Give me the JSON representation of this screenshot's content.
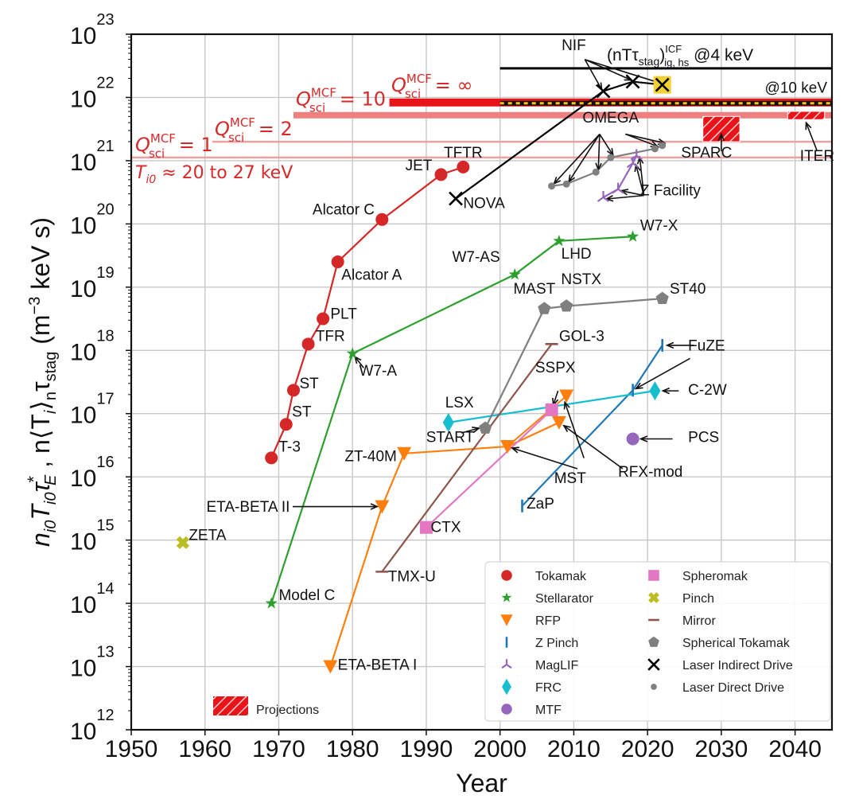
{
  "chart_data": {
    "type": "scatter",
    "title": "",
    "xlabel": "Year",
    "ylabel": "n_i0 T_i0 τ_E* , n⟨T_i⟩_n τ_stag (m⁻³ keV s)",
    "ylabel_parts": {
      "main": "n",
      "s1": "i0",
      "t": "T",
      "s2": "i0",
      "tau": "τ",
      "sE": "E",
      "star": "*",
      "comma": " ,  n⟨T",
      "si": "i",
      "close": "⟩",
      "sn": "n",
      "tau2": "τ",
      "stag": "stag",
      "units": " (m",
      "exp": "−3",
      "units2": " keV s)"
    },
    "xlim": [
      1950,
      2045
    ],
    "ylim_log10": [
      12,
      23
    ],
    "y_scale": "log",
    "grid": true,
    "x_ticks": [
      "1950",
      "1960",
      "1970",
      "1980",
      "1990",
      "2000",
      "2010",
      "2020",
      "2030",
      "2040"
    ],
    "x_tick_values": [
      1950,
      1960,
      1970,
      1980,
      1990,
      2000,
      2010,
      2020,
      2030,
      2040
    ],
    "y_ticks": [
      {
        "base": "10",
        "exp": "12",
        "value": 12
      },
      {
        "base": "10",
        "exp": "13",
        "value": 13
      },
      {
        "base": "10",
        "exp": "14",
        "value": 14
      },
      {
        "base": "10",
        "exp": "15",
        "value": 15
      },
      {
        "base": "10",
        "exp": "16",
        "value": 16
      },
      {
        "base": "10",
        "exp": "17",
        "value": 17
      },
      {
        "base": "10",
        "exp": "18",
        "value": 18
      },
      {
        "base": "10",
        "exp": "19",
        "value": 19
      },
      {
        "base": "10",
        "exp": "20",
        "value": 20
      },
      {
        "base": "10",
        "exp": "21",
        "value": 21
      },
      {
        "base": "10",
        "exp": "22",
        "value": 22
      },
      {
        "base": "10",
        "exp": "23",
        "value": 23
      }
    ],
    "thresholds": [
      {
        "name": "Q_sci^MCF = 1",
        "label_main": "Q",
        "label_sup": "MCF",
        "label_sub": "sci",
        "label_tail": " = 1",
        "log10": 21.05,
        "x_from": 1950,
        "x_to": 2045,
        "color": "#f0a0a0",
        "style": "thin"
      },
      {
        "name": "Q_sci^MCF = 2",
        "label_main": "Q",
        "label_sup": "MCF",
        "label_sub": "sci",
        "label_tail": " = 2",
        "log10": 21.3,
        "x_from": 1961,
        "x_to": 2045,
        "color": "#f0a0a0",
        "style": "thin"
      },
      {
        "name": "Q_sci^MCF = 10",
        "label_main": "Q",
        "label_sup": "MCF",
        "label_sub": "sci",
        "label_tail": " = 10",
        "log10": 21.72,
        "x_from": 1972,
        "x_to": 2045,
        "color": "#f08080",
        "style": "medium"
      },
      {
        "name": "Q_sci^MCF = ∞",
        "label_main": "Q",
        "label_sup": "MCF",
        "label_sub": "sci",
        "label_tail": " = ∞",
        "log10": 21.92,
        "x_from": 1985,
        "x_to": 2045,
        "color": "#e8141a",
        "style": "thick"
      },
      {
        "name": "ICF ignition @10 keV",
        "log10": 21.92,
        "x_from": 2000,
        "x_to": 2045,
        "color": "#f5c518",
        "style": "dotted"
      },
      {
        "name": "ICF ignition @4 keV",
        "log10": 22.46,
        "x_from": 2000,
        "x_to": 2045,
        "color": "#000000",
        "style": "line"
      }
    ],
    "threshold_text": {
      "ti0": "T",
      "ti0_sub": "i0",
      "ti0_tail": " ≈ 20 to 27 keV",
      "icf_main": "(nTτ",
      "icf_sub": "stag",
      "icf_close": ")",
      "icf_sup": "ICF",
      "icf_sub2": "ig, hs",
      "icf_tail": " @4 keV",
      "at10": "@10 keV"
    },
    "projections": [
      {
        "name": "SPARC",
        "x_from": 2027.5,
        "x_to": 2032.5,
        "log10_from": 21.3,
        "log10_to": 21.7
      },
      {
        "name": "ITER",
        "x_from": 2039,
        "x_to": 2044,
        "log10_from": 21.65,
        "log10_to": 21.78
      }
    ],
    "projections_legend_label": "Projections",
    "series": [
      {
        "name": "Tokamak",
        "marker": "circle",
        "color": "#d62728",
        "points": [
          {
            "label": "T-3",
            "year": 1969,
            "log10": 16.3
          },
          {
            "label": "ST",
            "year": 1971,
            "log10": 16.83
          },
          {
            "label": "ST",
            "year": 1972,
            "log10": 17.37
          },
          {
            "label": "TFR",
            "year": 1974,
            "log10": 18.1
          },
          {
            "label": "PLT",
            "year": 1976,
            "log10": 18.5
          },
          {
            "label": "Alcator A",
            "year": 1978,
            "log10": 19.4
          },
          {
            "label": "Alcator C",
            "year": 1984,
            "log10": 20.07
          },
          {
            "label": "JET",
            "year": 1992,
            "log10": 20.78
          },
          {
            "label": "TFTR",
            "year": 1995,
            "log10": 20.9
          }
        ]
      },
      {
        "name": "Stellarator",
        "marker": "star",
        "color": "#2ca02c",
        "points": [
          {
            "label": "Model C",
            "year": 1969,
            "log10": 14.0
          },
          {
            "label": "W7-A",
            "year": 1980,
            "log10": 17.95
          },
          {
            "label": "W7-AS",
            "year": 2002,
            "log10": 19.2
          },
          {
            "label": "LHD",
            "year": 2008,
            "log10": 19.73
          },
          {
            "label": "W7-X",
            "year": 2018,
            "log10": 19.8
          }
        ]
      },
      {
        "name": "RFP",
        "marker": "triangle-down",
        "color": "#ff7f0e",
        "points": [
          {
            "label": "ETA-BETA I",
            "year": 1977,
            "log10": 13.0
          },
          {
            "label": "ETA-BETA II",
            "year": 1984,
            "log10": 15.53
          },
          {
            "label": "ZT-40M",
            "year": 1987,
            "log10": 16.37
          },
          {
            "label": "MST",
            "year": 2001,
            "log10": 16.48
          },
          {
            "label": "RFX-mod",
            "year": 2008,
            "log10": 16.86
          },
          {
            "label": "MST",
            "year": 2009,
            "log10": 17.28
          }
        ]
      },
      {
        "name": "Z Pinch",
        "marker": "vline",
        "color": "#1f77b4",
        "points": [
          {
            "label": "ZaP",
            "year": 2003,
            "log10": 15.54
          },
          {
            "label": "",
            "year": 2018,
            "log10": 17.37
          },
          {
            "label": "FuZE",
            "year": 2022,
            "log10": 18.08
          }
        ]
      },
      {
        "name": "MagLIF",
        "marker": "tri-up",
        "color": "#9467bd",
        "points": [
          {
            "label": "",
            "year": 2014,
            "log10": 20.42
          },
          {
            "label": "",
            "year": 2016,
            "log10": 20.55
          },
          {
            "label": "",
            "year": 2018,
            "log10": 20.96
          },
          {
            "label": "",
            "year": 2018.5,
            "log10": 21.08
          }
        ]
      },
      {
        "name": "FRC",
        "marker": "diamond",
        "color": "#17becf",
        "points": [
          {
            "label": "LSX",
            "year": 1993,
            "log10": 16.86
          },
          {
            "label": "C-2W",
            "year": 2021,
            "log10": 17.36
          }
        ]
      },
      {
        "name": "MTF",
        "marker": "circle",
        "color": "#9467bd",
        "points": [
          {
            "label": "PCS",
            "year": 2018,
            "log10": 16.6
          }
        ]
      },
      {
        "name": "Spheromak",
        "marker": "square",
        "color": "#e377c2",
        "points": [
          {
            "label": "CTX",
            "year": 1990,
            "log10": 15.2
          },
          {
            "label": "SSPX",
            "year": 2007,
            "log10": 17.06
          }
        ]
      },
      {
        "name": "Pinch",
        "marker": "x-thick",
        "color": "#bcbd22",
        "points": [
          {
            "label": "ZETA",
            "year": 1957,
            "log10": 14.96
          }
        ]
      },
      {
        "name": "Mirror",
        "marker": "hline",
        "color": "#8c564b",
        "points": [
          {
            "label": "TMX-U",
            "year": 1984,
            "log10": 14.5
          },
          {
            "label": "GOL-3",
            "year": 2007,
            "log10": 18.1
          }
        ]
      },
      {
        "name": "Spherical Tokamak",
        "marker": "pentagon",
        "color": "#7f7f7f",
        "points": [
          {
            "label": "START",
            "year": 1998,
            "log10": 16.77
          },
          {
            "label": "MAST",
            "year": 2006,
            "log10": 18.66
          },
          {
            "label": "NSTX",
            "year": 2009,
            "log10": 18.7
          },
          {
            "label": "ST40",
            "year": 2022,
            "log10": 18.82
          }
        ]
      },
      {
        "name": "Laser Indirect Drive",
        "marker": "x",
        "color": "#000000",
        "points": [
          {
            "label": "NOVA",
            "year": 1994,
            "log10": 20.4
          },
          {
            "label": "NIF",
            "year": 2014,
            "log10": 22.1
          },
          {
            "label": "NIF",
            "year": 2018,
            "log10": 22.25
          },
          {
            "label": "NIF",
            "year": 2022,
            "log10": 22.2,
            "highlight": true
          }
        ]
      },
      {
        "name": "Laser Direct Drive",
        "marker": "dot",
        "color": "#808080",
        "points": [
          {
            "label": "OMEGA",
            "year": 2007,
            "log10": 20.6
          },
          {
            "label": "OMEGA",
            "year": 2009,
            "log10": 20.63
          },
          {
            "label": "OMEGA",
            "year": 2013,
            "log10": 20.82
          },
          {
            "label": "OMEGA",
            "year": 2015,
            "log10": 21.05
          },
          {
            "label": "OMEGA",
            "year": 2021,
            "log10": 21.19
          },
          {
            "label": "OMEGA",
            "year": 2022,
            "log10": 21.24
          }
        ]
      }
    ],
    "annotations": [
      {
        "text": "TFTR",
        "x": 1995,
        "y": 21.05,
        "anchor": "middle"
      },
      {
        "text": "JET",
        "x": 1990.8,
        "y": 20.85,
        "anchor": "end"
      },
      {
        "text": "Alcator C",
        "x": 1983,
        "y": 20.15,
        "anchor": "end"
      },
      {
        "text": "Alcator A",
        "x": 1978.5,
        "y": 19.12,
        "anchor": "start"
      },
      {
        "text": "PLT",
        "x": 1977,
        "y": 18.5,
        "anchor": "start"
      },
      {
        "text": "TFR",
        "x": 1975,
        "y": 18.15,
        "anchor": "start"
      },
      {
        "text": "ST",
        "x": 1972.8,
        "y": 17.4,
        "anchor": "start"
      },
      {
        "text": "ST",
        "x": 1971.8,
        "y": 16.95,
        "anchor": "start"
      },
      {
        "text": "T-3",
        "x": 1970,
        "y": 16.4,
        "anchor": "start"
      },
      {
        "text": "NOVA",
        "x": 1995,
        "y": 20.25,
        "anchor": "start"
      },
      {
        "text": "NIF",
        "x": 2010,
        "y": 22.75,
        "anchor": "middle"
      },
      {
        "text": "OMEGA",
        "x": 2015,
        "y": 21.6,
        "anchor": "middle"
      },
      {
        "text": "Z Facility",
        "x": 2019,
        "y": 20.45,
        "anchor": "start"
      },
      {
        "text": "SPARC",
        "x": 2028,
        "y": 21.05,
        "anchor": "middle"
      },
      {
        "text": "ITER",
        "x": 2043,
        "y": 21.0,
        "anchor": "middle"
      },
      {
        "text": "W7-X",
        "x": 2019,
        "y": 19.9,
        "anchor": "start"
      },
      {
        "text": "LHD",
        "x": 2008.3,
        "y": 19.45,
        "anchor": "start"
      },
      {
        "text": "W7-AS",
        "x": 2000,
        "y": 19.4,
        "anchor": "end"
      },
      {
        "text": "W7-A",
        "x": 1980.9,
        "y": 17.6,
        "anchor": "start"
      },
      {
        "text": "Model C",
        "x": 1970,
        "y": 14.05,
        "anchor": "start"
      },
      {
        "text": "MAST",
        "x": 2007.5,
        "y": 18.9,
        "anchor": "end"
      },
      {
        "text": "NSTX",
        "x": 2011,
        "y": 19.05,
        "anchor": "middle"
      },
      {
        "text": "ST40",
        "x": 2023,
        "y": 18.9,
        "anchor": "start"
      },
      {
        "text": "GOL-3",
        "x": 2008,
        "y": 18.15,
        "anchor": "start"
      },
      {
        "text": "SSPX",
        "x": 2007.5,
        "y": 17.65,
        "anchor": "middle"
      },
      {
        "text": "FuZE",
        "x": 2025.5,
        "y": 18.0,
        "anchor": "start"
      },
      {
        "text": "C-2W",
        "x": 2025.5,
        "y": 17.3,
        "anchor": "start"
      },
      {
        "text": "LSX",
        "x": 1994.5,
        "y": 17.1,
        "anchor": "middle"
      },
      {
        "text": "START",
        "x": 1996.5,
        "y": 16.55,
        "anchor": "end"
      },
      {
        "text": "PCS",
        "x": 2025.5,
        "y": 16.55,
        "anchor": "start"
      },
      {
        "text": "ZT-40M",
        "x": 1986,
        "y": 16.25,
        "anchor": "end"
      },
      {
        "text": "RFX-mod",
        "x": 2016,
        "y": 16.0,
        "anchor": "start"
      },
      {
        "text": "MST",
        "x": 2009.5,
        "y": 15.9,
        "anchor": "middle"
      },
      {
        "text": "ETA-BETA II",
        "x": 1971.5,
        "y": 15.45,
        "anchor": "end"
      },
      {
        "text": "ZaP",
        "x": 2003.6,
        "y": 15.5,
        "anchor": "start"
      },
      {
        "text": "CTX",
        "x": 1990.6,
        "y": 15.13,
        "anchor": "start"
      },
      {
        "text": "ZETA",
        "x": 1957.8,
        "y": 15.0,
        "anchor": "start"
      },
      {
        "text": "TMX-U",
        "x": 1984.8,
        "y": 14.35,
        "anchor": "start"
      },
      {
        "text": "ETA-BETA I",
        "x": 1978,
        "y": 12.95,
        "anchor": "start"
      }
    ],
    "legend": {
      "placement": "lower-right",
      "entries": [
        {
          "label": "Tokamak",
          "marker": "circle",
          "color": "#d62728"
        },
        {
          "label": "Stellarator",
          "marker": "star",
          "color": "#2ca02c"
        },
        {
          "label": "RFP",
          "marker": "triangle-down",
          "color": "#ff7f0e"
        },
        {
          "label": "Z Pinch",
          "marker": "vline",
          "color": "#1f77b4"
        },
        {
          "label": "MagLIF",
          "marker": "tri-up",
          "color": "#9467bd"
        },
        {
          "label": "FRC",
          "marker": "diamond",
          "color": "#17becf"
        },
        {
          "label": "MTF",
          "marker": "circle",
          "color": "#9467bd"
        },
        {
          "label": "Spheromak",
          "marker": "square",
          "color": "#e377c2"
        },
        {
          "label": "Pinch",
          "marker": "x-thick",
          "color": "#bcbd22"
        },
        {
          "label": "Mirror",
          "marker": "hline",
          "color": "#8c564b"
        },
        {
          "label": "Spherical Tokamak",
          "marker": "pentagon",
          "color": "#7f7f7f"
        },
        {
          "label": "Laser Indirect Drive",
          "marker": "x",
          "color": "#000000"
        },
        {
          "label": "Laser Direct Drive",
          "marker": "dot",
          "color": "#808080"
        }
      ]
    }
  }
}
